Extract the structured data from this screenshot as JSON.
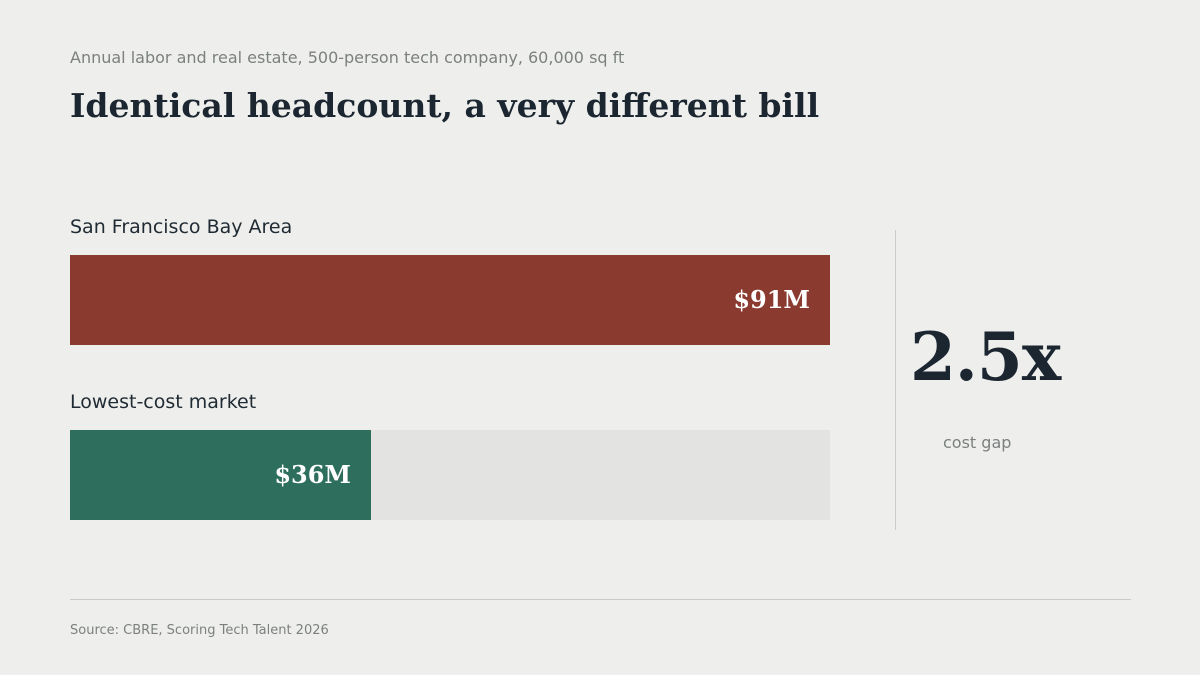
{
  "subtitle": "Annual labor and real estate, 500-person tech company, 60,000 sq ft",
  "title": "Identical headcount, a very different bill",
  "chart_data": {
    "type": "bar",
    "orientation": "horizontal",
    "categories": [
      "San Francisco Bay Area",
      "Lowest-cost market"
    ],
    "values": [
      91,
      36
    ],
    "value_labels": [
      "$91M",
      "$36M"
    ],
    "unit": "$M",
    "xlim": [
      0,
      91
    ],
    "colors": [
      "#8b3a30",
      "#2e6e5c"
    ],
    "track_color": "#e3e4e1",
    "grid": false,
    "title": "Identical headcount, a very different bill",
    "subtitle": "Annual labor and real estate, 500-person tech company, 60,000 sq ft"
  },
  "callout": {
    "value": "2.5x",
    "label": "cost gap"
  },
  "source": "Source: CBRE, Scoring Tech Talent 2026"
}
